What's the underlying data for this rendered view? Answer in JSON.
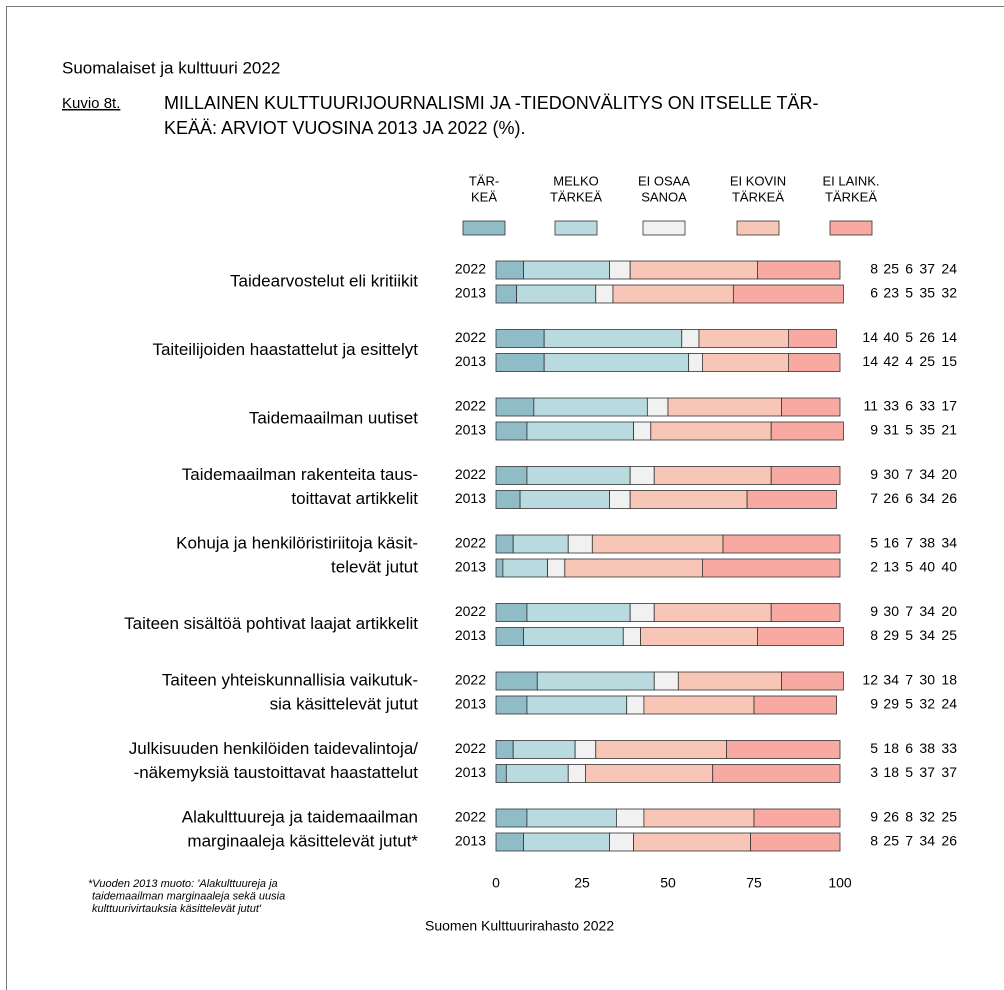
{
  "chart_data": {
    "type": "stacked-bar-horizontal",
    "header": "Suomalaiset ja kulttuuri 2022",
    "figure_label": "Kuvio 8t.",
    "title": [
      "MILLAINEN KULTTUURIJOURNALISMI JA -TIEDONVÄLITYS ON ITSELLE TÄR-",
      "KEÄÄ: ARVIOT VUOSINA 2013 JA 2022 (%)."
    ],
    "categories": [
      [
        "Taidearvostelut eli kritiikit"
      ],
      [
        "Taiteilijoiden haastattelut ja esittelyt"
      ],
      [
        "Taidemaailman uutiset"
      ],
      [
        "Taidemaailman rakenteita taus-",
        "toittavat artikkelit"
      ],
      [
        "Kohuja ja henkilöristiriitoja käsit-",
        "televät jutut"
      ],
      [
        "Taiteen sisältöä pohtivat laajat artikkelit"
      ],
      [
        "Taiteen yhteiskunnallisia vaikutuk-",
        "sia käsittelevät jutut"
      ],
      [
        "Julkisuuden henkilöiden taidevalintoja/",
        "-näkemyksiä taustoittavat haastattelut"
      ],
      [
        "Alakulttuureja ja taidemaailman",
        "marginaaleja käsittelevät jutut*"
      ]
    ],
    "years": [
      "2022",
      "2013"
    ],
    "series": [
      {
        "name": [
          "TÄR-",
          "KEÄ"
        ],
        "color": "#8fbcc6",
        "values": [
          [
            8,
            6
          ],
          [
            14,
            14
          ],
          [
            11,
            9
          ],
          [
            9,
            7
          ],
          [
            5,
            2
          ],
          [
            9,
            8
          ],
          [
            12,
            9
          ],
          [
            5,
            3
          ],
          [
            9,
            8
          ]
        ]
      },
      {
        "name": [
          "MELKO",
          "TÄRKEÄ"
        ],
        "color": "#b9dbdf",
        "values": [
          [
            25,
            23
          ],
          [
            40,
            42
          ],
          [
            33,
            31
          ],
          [
            30,
            26
          ],
          [
            16,
            13
          ],
          [
            30,
            29
          ],
          [
            34,
            29
          ],
          [
            18,
            18
          ],
          [
            26,
            25
          ]
        ]
      },
      {
        "name": [
          "EI OSAA",
          "SANOA"
        ],
        "color": "#f1f1f1",
        "values": [
          [
            6,
            5
          ],
          [
            5,
            4
          ],
          [
            6,
            5
          ],
          [
            7,
            6
          ],
          [
            7,
            5
          ],
          [
            7,
            5
          ],
          [
            7,
            5
          ],
          [
            6,
            5
          ],
          [
            8,
            7
          ]
        ]
      },
      {
        "name": [
          "EI KOVIN",
          "TÄRKEÄ"
        ],
        "color": "#f8c6b6",
        "values": [
          [
            37,
            35
          ],
          [
            26,
            25
          ],
          [
            33,
            35
          ],
          [
            34,
            34
          ],
          [
            38,
            40
          ],
          [
            34,
            34
          ],
          [
            30,
            32
          ],
          [
            38,
            37
          ],
          [
            32,
            34
          ]
        ]
      },
      {
        "name": [
          "EI LAINK.",
          "TÄRKEÄ"
        ],
        "color": "#f8a9a2",
        "values": [
          [
            24,
            32
          ],
          [
            14,
            15
          ],
          [
            17,
            21
          ],
          [
            20,
            26
          ],
          [
            34,
            40
          ],
          [
            20,
            25
          ],
          [
            18,
            24
          ],
          [
            33,
            37
          ],
          [
            25,
            26
          ]
        ]
      }
    ],
    "xlim": [
      0,
      100
    ],
    "xticks": [
      0,
      25,
      50,
      75,
      100
    ],
    "footnote": [
      "*Vuoden 2013 muoto: 'Alakulttuureja ja",
      "taidemaailman marginaaleja sekä uusia",
      "kulttuurivirtauksia käsittelevät jutut'"
    ],
    "source": "Suomen Kulttuurirahasto 2022"
  }
}
